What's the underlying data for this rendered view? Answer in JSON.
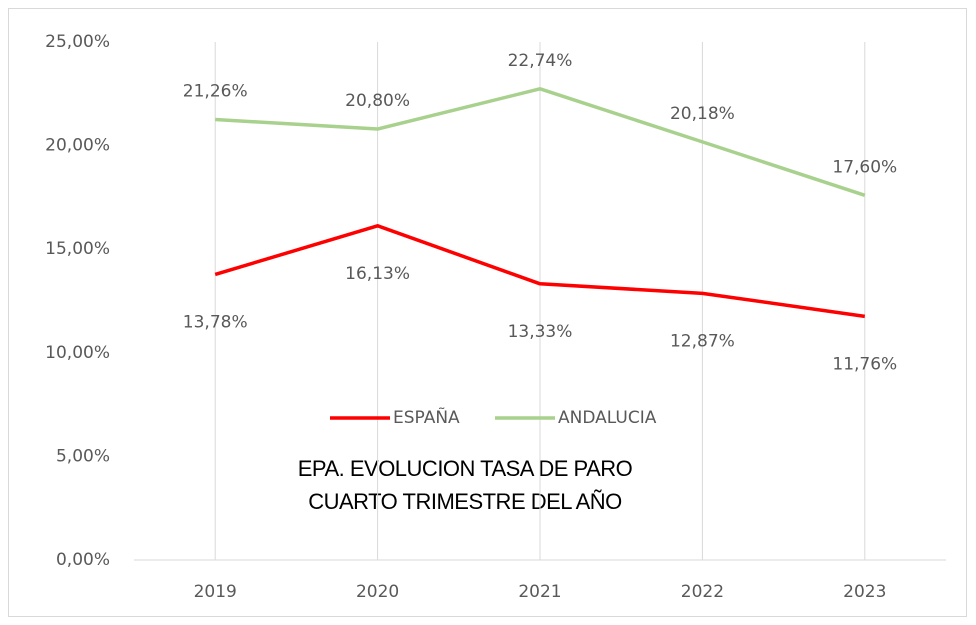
{
  "chart_data": {
    "type": "line",
    "title": "EPA. EVOLUCION TASA DE PARO",
    "subtitle": "CUARTO TRIMESTRE DEL AÑO",
    "categories": [
      "2019",
      "2020",
      "2021",
      "2022",
      "2023"
    ],
    "series": [
      {
        "name": "ESPAÑA",
        "color": "#ff0000",
        "values": [
          13.78,
          16.13,
          13.33,
          12.87,
          11.76
        ],
        "value_labels": [
          "13,78%",
          "16,13%",
          "13,33%",
          "12,87%",
          "11,76%"
        ]
      },
      {
        "name": "ANDALUCIA",
        "color": "#a9d18e",
        "values": [
          21.26,
          20.8,
          22.74,
          20.18,
          17.6
        ],
        "value_labels": [
          "21,26%",
          "20,80%",
          "22,74%",
          "20,18%",
          "17,60%"
        ]
      }
    ],
    "ylim": [
      0,
      25
    ],
    "yticks": [
      {
        "value": 0,
        "label": "0,00%"
      },
      {
        "value": 5,
        "label": "5,00%"
      },
      {
        "value": 10,
        "label": "10,00%"
      },
      {
        "value": 15,
        "label": "15,00%"
      },
      {
        "value": 20,
        "label": "20,00%"
      },
      {
        "value": 25,
        "label": "25,00%"
      }
    ]
  }
}
